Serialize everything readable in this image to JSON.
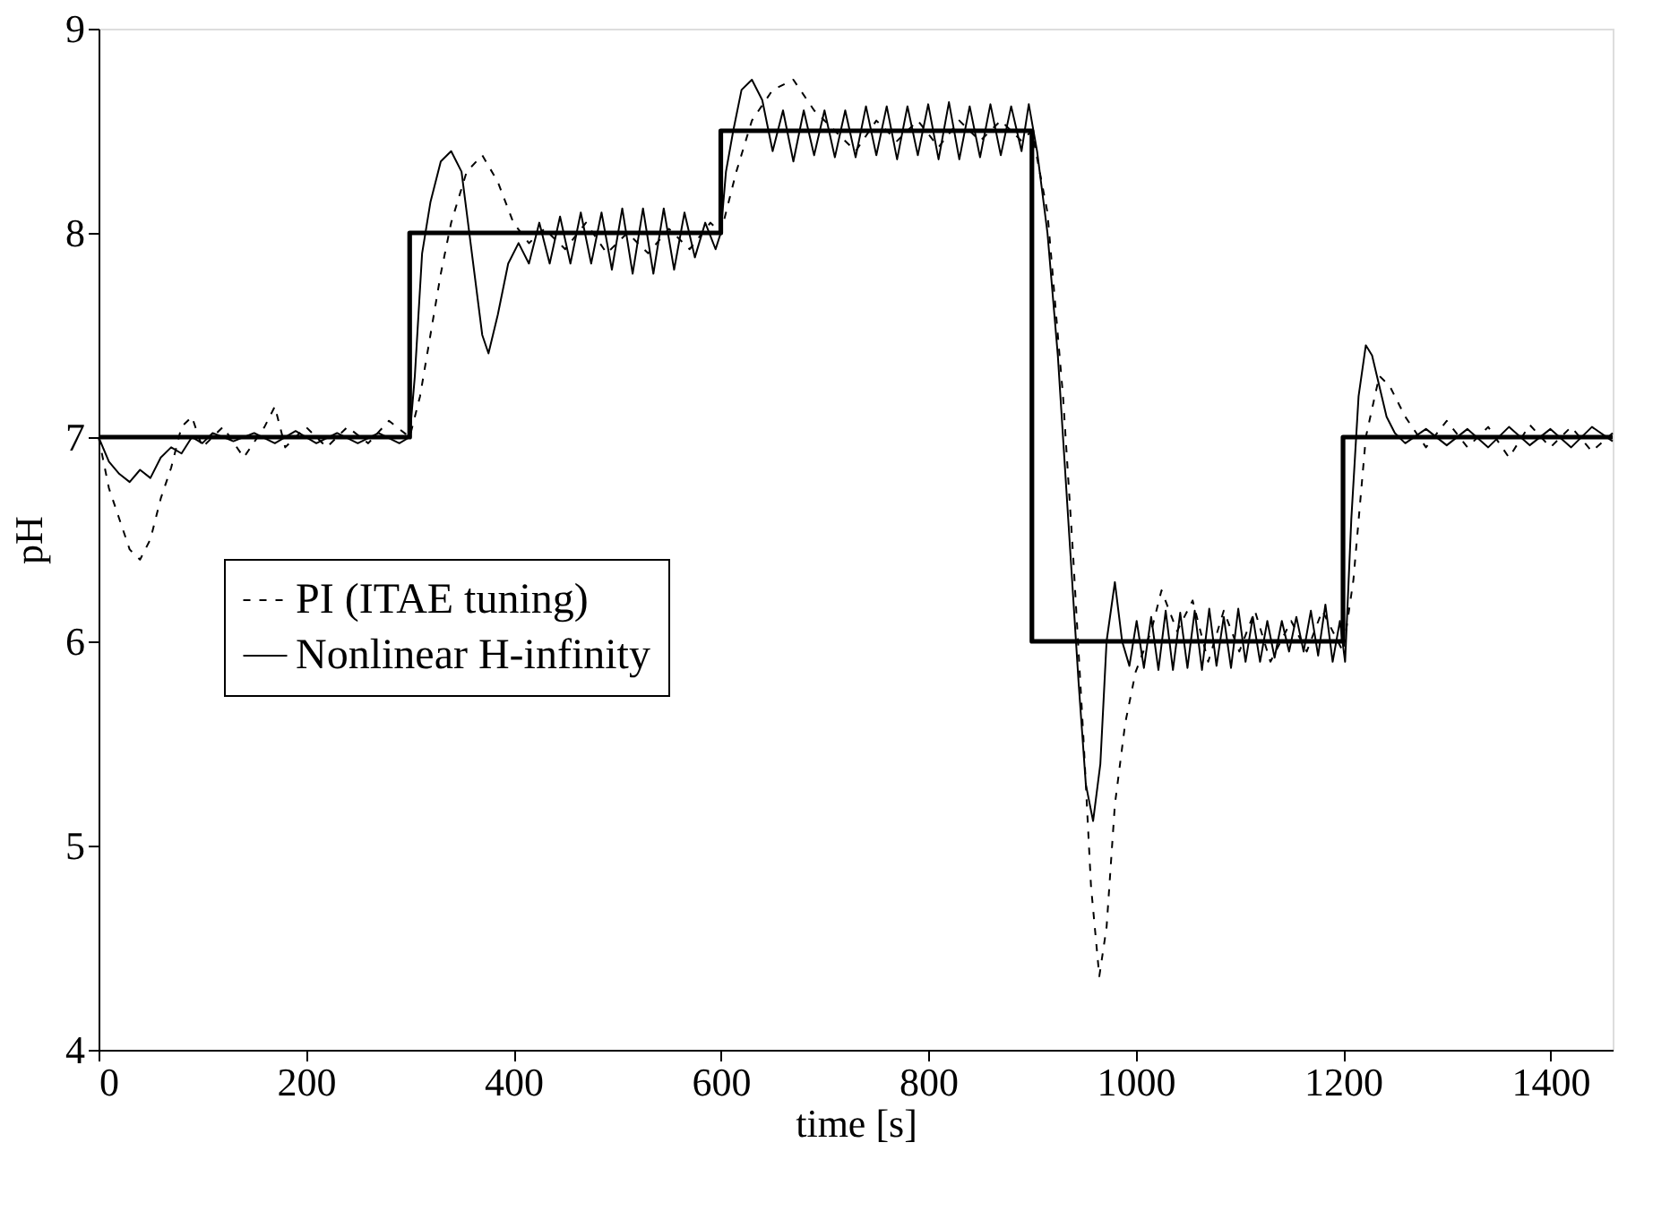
{
  "chart_data": {
    "type": "line",
    "xlabel": "time [s]",
    "ylabel": "pH",
    "xlim": [
      0,
      1460
    ],
    "ylim": [
      4,
      9
    ],
    "xticks": [
      0,
      200,
      400,
      600,
      800,
      1000,
      1200,
      1400
    ],
    "yticks": [
      4,
      5,
      6,
      7,
      8,
      9
    ],
    "grid": false,
    "legend": "left",
    "marker": "none",
    "series": [
      {
        "color": "#000000",
        "line_style": "solid",
        "x": [
          0,
          300,
          300,
          600,
          600,
          900,
          900,
          1200,
          1200,
          1460
        ],
        "values": [
          7,
          7,
          8,
          8,
          8.5,
          8.5,
          6,
          6,
          7,
          7
        ]
      },
      {
        "name": "PI (ITAE tuning)",
        "color": "#000000",
        "line_style": "dashed",
        "x": [
          0,
          10,
          20,
          30,
          40,
          50,
          60,
          70,
          80,
          90,
          100,
          120,
          140,
          160,
          170,
          180,
          200,
          220,
          240,
          260,
          280,
          300,
          310,
          320,
          330,
          340,
          355,
          370,
          385,
          400,
          415,
          430,
          450,
          470,
          490,
          510,
          530,
          550,
          570,
          590,
          600,
          615,
          630,
          650,
          670,
          690,
          710,
          730,
          750,
          770,
          790,
          810,
          830,
          850,
          870,
          890,
          900,
          915,
          930,
          940,
          950,
          957,
          965,
          972,
          980,
          990,
          1000,
          1015,
          1025,
          1040,
          1055,
          1070,
          1085,
          1100,
          1115,
          1130,
          1150,
          1165,
          1180,
          1200,
          1210,
          1222,
          1235,
          1245,
          1260,
          1280,
          1300,
          1320,
          1340,
          1360,
          1380,
          1400,
          1420,
          1440,
          1460
        ],
        "values": [
          7.0,
          6.75,
          6.6,
          6.45,
          6.4,
          6.5,
          6.7,
          6.85,
          7.05,
          7.1,
          6.95,
          7.05,
          6.9,
          7.05,
          7.15,
          6.95,
          7.05,
          6.95,
          7.05,
          6.97,
          7.08,
          7.0,
          7.2,
          7.5,
          7.8,
          8.05,
          8.3,
          8.38,
          8.25,
          8.05,
          7.95,
          8.02,
          7.92,
          8.05,
          7.9,
          8.0,
          7.9,
          8.02,
          7.92,
          8.05,
          8.0,
          8.3,
          8.55,
          8.7,
          8.75,
          8.6,
          8.5,
          8.4,
          8.55,
          8.45,
          8.55,
          8.42,
          8.55,
          8.45,
          8.55,
          8.45,
          8.5,
          8.1,
          7.2,
          6.4,
          5.5,
          4.8,
          4.36,
          4.6,
          5.2,
          5.6,
          5.85,
          6.05,
          6.25,
          6.05,
          6.2,
          5.9,
          6.15,
          5.95,
          6.15,
          5.9,
          6.1,
          5.95,
          6.15,
          5.95,
          6.3,
          7.0,
          7.3,
          7.25,
          7.1,
          6.95,
          7.08,
          6.95,
          7.05,
          6.9,
          7.06,
          6.95,
          7.05,
          6.93,
          7.02
        ]
      },
      {
        "name": "Nonlinear H-infinity",
        "color": "#000000",
        "line_style": "solid",
        "x": [
          0,
          10,
          20,
          30,
          40,
          50,
          60,
          70,
          80,
          90,
          100,
          110,
          130,
          150,
          170,
          190,
          210,
          230,
          250,
          270,
          290,
          300,
          305,
          312,
          320,
          330,
          340,
          350,
          360,
          370,
          376,
          385,
          395,
          405,
          415,
          425,
          435,
          445,
          455,
          465,
          475,
          485,
          495,
          505,
          515,
          525,
          535,
          545,
          555,
          565,
          575,
          585,
          595,
          600,
          605,
          612,
          620,
          630,
          640,
          650,
          660,
          670,
          680,
          690,
          700,
          710,
          720,
          730,
          740,
          750,
          760,
          770,
          780,
          790,
          800,
          810,
          820,
          830,
          840,
          850,
          860,
          870,
          880,
          890,
          897,
          905,
          915,
          925,
          935,
          945,
          952,
          959,
          966,
          972,
          980,
          987,
          994,
          1001,
          1008,
          1015,
          1022,
          1029,
          1036,
          1043,
          1050,
          1057,
          1064,
          1071,
          1078,
          1085,
          1092,
          1099,
          1106,
          1113,
          1120,
          1127,
          1134,
          1141,
          1148,
          1155,
          1162,
          1169,
          1176,
          1183,
          1190,
          1197,
          1202,
          1208,
          1215,
          1222,
          1228,
          1235,
          1242,
          1250,
          1260,
          1280,
          1300,
          1320,
          1340,
          1360,
          1380,
          1400,
          1420,
          1440,
          1460
        ],
        "values": [
          7.0,
          6.88,
          6.82,
          6.78,
          6.84,
          6.8,
          6.9,
          6.95,
          6.92,
          7.0,
          6.97,
          7.02,
          6.98,
          7.02,
          6.97,
          7.03,
          6.97,
          7.02,
          6.97,
          7.02,
          6.97,
          7.0,
          7.3,
          7.9,
          8.15,
          8.35,
          8.4,
          8.3,
          7.9,
          7.5,
          7.41,
          7.6,
          7.85,
          7.95,
          7.85,
          8.05,
          7.85,
          8.08,
          7.85,
          8.1,
          7.85,
          8.1,
          7.82,
          8.12,
          7.8,
          8.12,
          7.8,
          8.12,
          7.82,
          8.1,
          7.88,
          8.05,
          7.92,
          8.0,
          8.3,
          8.5,
          8.7,
          8.75,
          8.65,
          8.4,
          8.6,
          8.35,
          8.6,
          8.38,
          8.6,
          8.37,
          8.6,
          8.37,
          8.62,
          8.38,
          8.62,
          8.36,
          8.62,
          8.38,
          8.63,
          8.36,
          8.64,
          8.36,
          8.62,
          8.37,
          8.63,
          8.38,
          8.62,
          8.4,
          8.63,
          8.4,
          8.0,
          7.4,
          6.6,
          5.8,
          5.3,
          5.12,
          5.4,
          6.0,
          6.29,
          6.0,
          5.88,
          6.1,
          5.87,
          6.12,
          5.86,
          6.15,
          5.86,
          6.14,
          5.87,
          6.15,
          5.86,
          6.16,
          5.88,
          6.12,
          5.87,
          6.16,
          5.9,
          6.12,
          5.9,
          6.1,
          5.92,
          6.1,
          5.95,
          6.12,
          5.95,
          6.15,
          5.93,
          6.18,
          5.9,
          6.1,
          5.9,
          6.6,
          7.2,
          7.45,
          7.4,
          7.25,
          7.1,
          7.02,
          6.97,
          7.04,
          6.96,
          7.04,
          6.95,
          7.05,
          6.96,
          7.04,
          6.95,
          7.05,
          6.98
        ]
      }
    ]
  }
}
